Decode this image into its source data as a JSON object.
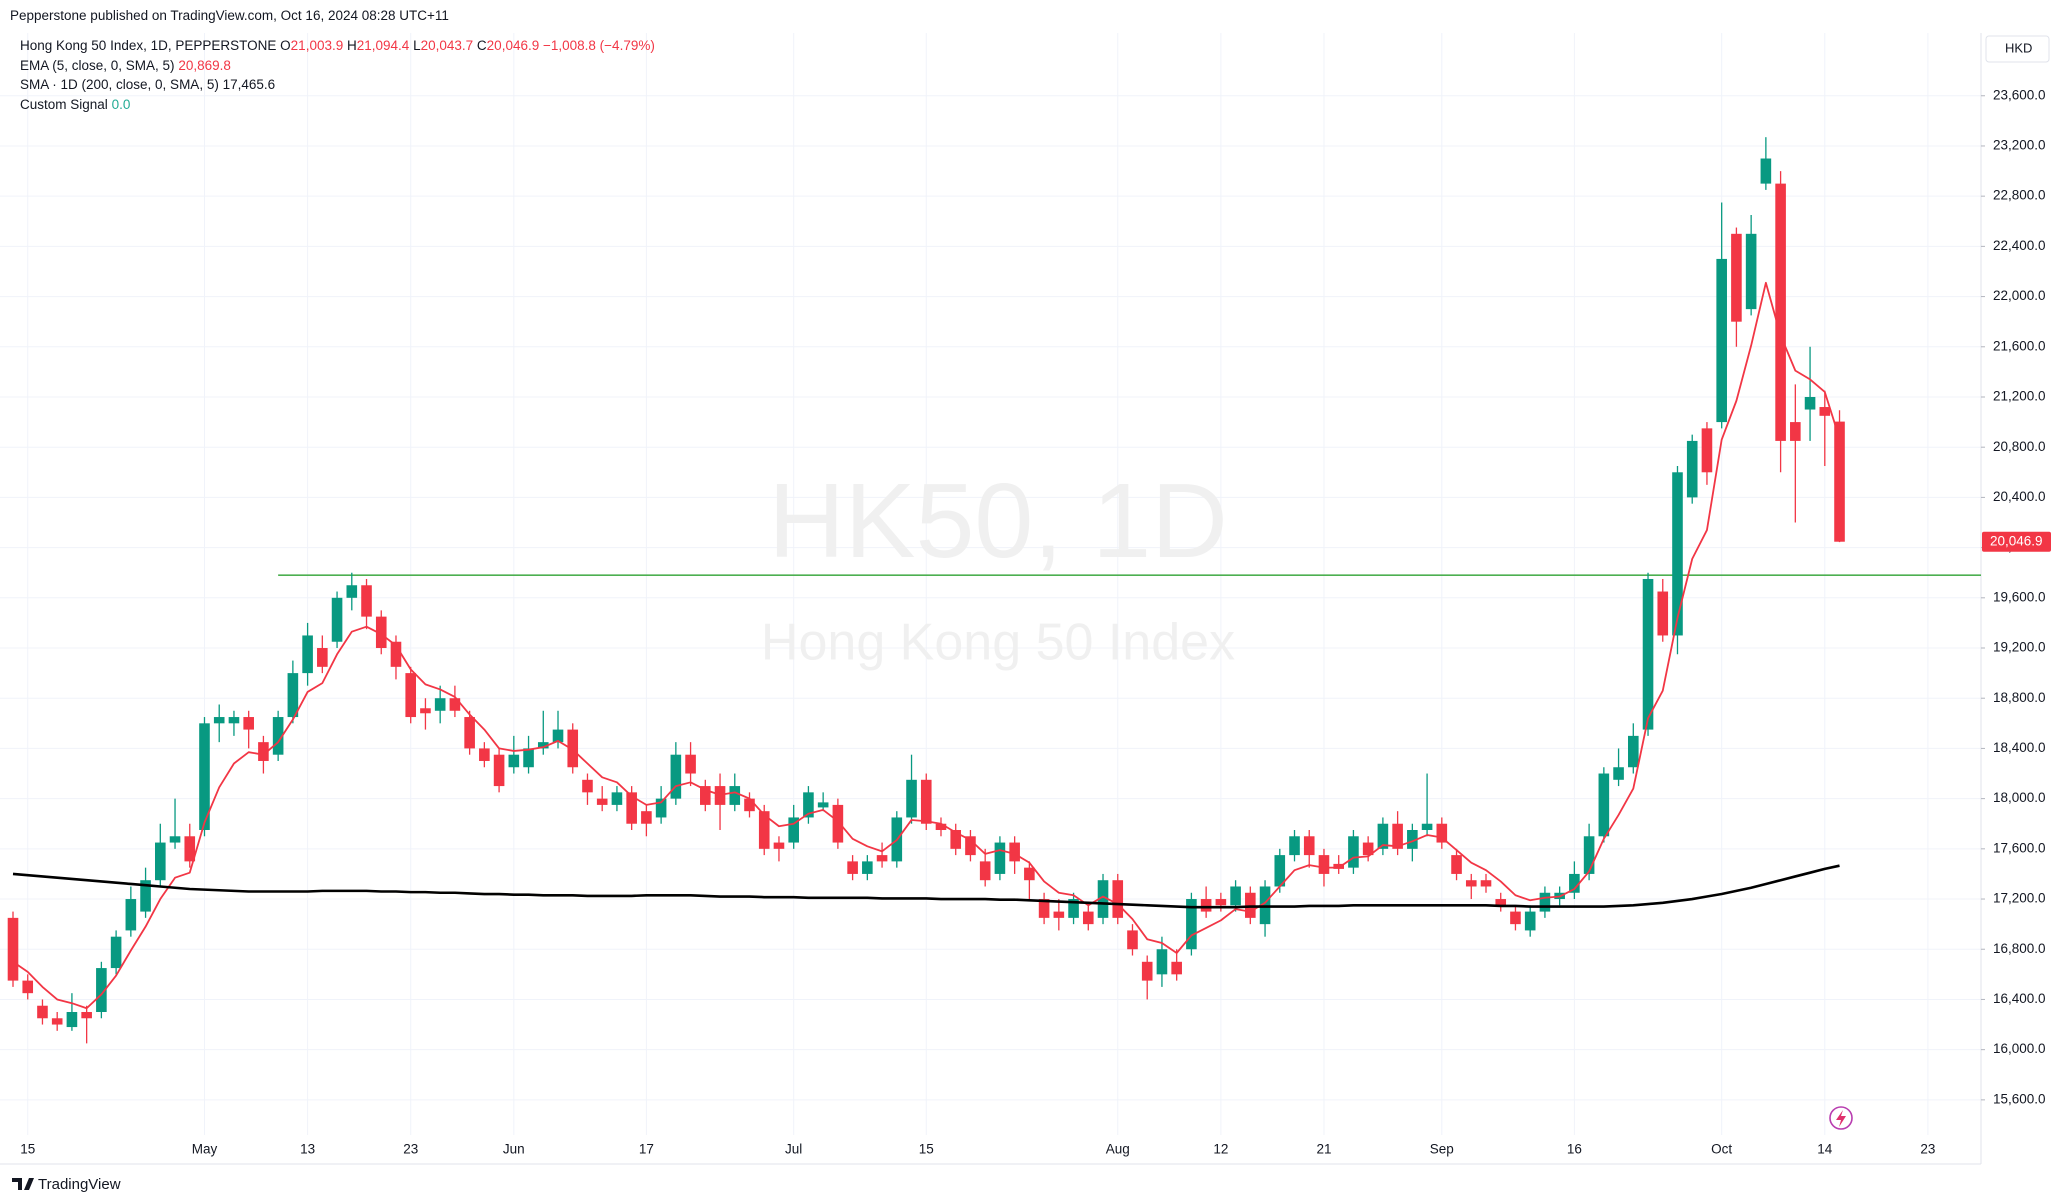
{
  "header": {
    "published": "Pepperstone published on TradingView.com, Oct 16, 2024 08:28 UTC+11",
    "brand": "TradingView"
  },
  "legend": {
    "name": "Hong Kong 50 Index, 1D, PEPPERSTONE",
    "ohlc": [
      {
        "key": "O",
        "value": "21,003.9"
      },
      {
        "key": "H",
        "value": "21,094.4"
      },
      {
        "key": "L",
        "value": "20,043.7"
      },
      {
        "key": "C",
        "value": "20,046.9"
      }
    ],
    "change": "−1,008.8 (−4.79%)",
    "custom_signal": {
      "name": "Custom Signal",
      "value": "0.0"
    }
  },
  "chart_data": {
    "type": "candlestick",
    "watermark": "HK50, 1D",
    "watermark_sub": "Hong Kong 50 Index",
    "currency": "HKD",
    "last_price_label": "20,046.9",
    "up_color": "#089981",
    "down_color": "#f23645",
    "grid": true,
    "categories": [
      null,
      "15",
      null,
      null,
      null,
      null,
      null,
      null,
      null,
      null,
      null,
      null,
      null,
      "May",
      null,
      null,
      null,
      null,
      null,
      null,
      "13",
      null,
      null,
      null,
      null,
      null,
      null,
      "23",
      null,
      null,
      null,
      null,
      null,
      null,
      "Jun",
      null,
      null,
      null,
      null,
      null,
      null,
      null,
      null,
      "17",
      null,
      null,
      null,
      null,
      null,
      null,
      null,
      null,
      null,
      "Jul",
      null,
      null,
      null,
      null,
      null,
      null,
      null,
      null,
      "15",
      null,
      null,
      null,
      null,
      null,
      null,
      null,
      null,
      null,
      null,
      null,
      null,
      "Aug",
      null,
      null,
      null,
      null,
      null,
      null,
      "12",
      null,
      null,
      null,
      null,
      null,
      null,
      "21",
      null,
      null,
      null,
      null,
      null,
      null,
      null,
      "Sep",
      null,
      null,
      null,
      null,
      null,
      null,
      null,
      null,
      "16",
      null,
      null,
      null,
      null,
      null,
      null,
      null,
      null,
      null,
      "Oct",
      null,
      null,
      null,
      null,
      null,
      null,
      "14",
      null,
      null,
      null,
      null,
      null,
      null,
      "23",
      null,
      null,
      null
    ],
    "open": [
      17050,
      16550,
      16350,
      16250,
      16180,
      16300,
      16300,
      16650,
      16950,
      17100,
      17350,
      17650,
      17700,
      17750,
      18600,
      18600,
      18650,
      18450,
      18350,
      18650,
      19000,
      19200,
      19250,
      19600,
      19700,
      19450,
      19250,
      19000,
      18720,
      18700,
      18800,
      18650,
      18400,
      18350,
      18250,
      18250,
      18400,
      18450,
      18550,
      18150,
      18000,
      17950,
      18050,
      17900,
      17850,
      18000,
      18350,
      18100,
      18100,
      17950,
      18000,
      17900,
      17650,
      17650,
      17850,
      17930,
      17950,
      17500,
      17400,
      17550,
      17500,
      17850,
      18150,
      17800,
      17750,
      17700,
      17500,
      17400,
      17650,
      17450,
      17200,
      17100,
      17050,
      17100,
      17050,
      17350,
      16950,
      16700,
      16600,
      16700,
      16800,
      17200,
      17200,
      17150,
      17250,
      17000,
      17300,
      17550,
      17700,
      17550,
      17480,
      17450,
      17650,
      17600,
      17800,
      17600,
      17750,
      17800,
      17550,
      17350,
      17350,
      17200,
      17100,
      16950,
      17100,
      17200,
      17250,
      17400,
      17700,
      18150,
      18250,
      18550,
      19650,
      19300,
      20400,
      20950,
      21000,
      22500,
      21900,
      22900,
      22900,
      21000,
      21100,
      21120,
      21003.9,
      null,
      null,
      null,
      null,
      null,
      null,
      null,
      null,
      null
    ],
    "high": [
      17100,
      16600,
      16400,
      16300,
      16450,
      16350,
      16700,
      16950,
      17300,
      17450,
      17800,
      18000,
      17800,
      18650,
      18750,
      18700,
      18700,
      18500,
      18700,
      19100,
      19400,
      19300,
      19650,
      19800,
      19750,
      19500,
      19300,
      19050,
      18800,
      18900,
      18900,
      18700,
      18450,
      18400,
      18500,
      18500,
      18700,
      18700,
      18600,
      18200,
      18100,
      18100,
      18100,
      17950,
      18100,
      18450,
      18450,
      18150,
      18200,
      18200,
      18050,
      17950,
      17700,
      17950,
      18100,
      18050,
      18000,
      17550,
      17550,
      17650,
      17900,
      18350,
      18200,
      17850,
      17800,
      17750,
      17600,
      17700,
      17700,
      17500,
      17250,
      17200,
      17250,
      17150,
      17400,
      17400,
      17000,
      16750,
      16900,
      16800,
      17250,
      17300,
      17250,
      17350,
      17300,
      17350,
      17600,
      17750,
      17750,
      17600,
      17550,
      17750,
      17700,
      17850,
      17900,
      17800,
      18200,
      17850,
      17600,
      17400,
      17400,
      17250,
      17150,
      17150,
      17300,
      17300,
      17500,
      17800,
      18250,
      18400,
      18600,
      19800,
      19750,
      20650,
      20900,
      21000,
      22750,
      22550,
      22650,
      23270,
      23000,
      21300,
      21600,
      21250,
      21094.4,
      null,
      null,
      null,
      null,
      null,
      null,
      null,
      null,
      null
    ],
    "low": [
      16500,
      16400,
      16200,
      16150,
      16150,
      16050,
      16250,
      16600,
      16900,
      17050,
      17300,
      17600,
      17450,
      17700,
      18450,
      18500,
      18400,
      18200,
      18300,
      18600,
      18900,
      19000,
      19200,
      19500,
      19350,
      19150,
      18950,
      18600,
      18550,
      18600,
      18650,
      18350,
      18250,
      18050,
      18200,
      18200,
      18350,
      18400,
      18200,
      17950,
      17900,
      17900,
      17750,
      17700,
      17800,
      17950,
      18100,
      17900,
      17750,
      17900,
      17850,
      17550,
      17500,
      17600,
      17800,
      17900,
      17600,
      17350,
      17350,
      17450,
      17450,
      17800,
      17750,
      17700,
      17550,
      17500,
      17300,
      17350,
      17400,
      17200,
      17000,
      16950,
      17000,
      16950,
      17000,
      17000,
      16750,
      16400,
      16500,
      16550,
      16750,
      17050,
      17100,
      17100,
      17000,
      16900,
      17250,
      17500,
      17450,
      17300,
      17400,
      17400,
      17500,
      17550,
      17550,
      17500,
      17700,
      17600,
      17350,
      17200,
      17250,
      17100,
      16950,
      16900,
      17050,
      17150,
      17200,
      17350,
      17650,
      18100,
      18200,
      18500,
      19250,
      19150,
      20350,
      20500,
      20950,
      21600,
      21850,
      22850,
      20600,
      20200,
      20850,
      20650,
      20043.7,
      null,
      null,
      null,
      null,
      null,
      null,
      null,
      null,
      null
    ],
    "close": [
      16550,
      16450,
      16250,
      16200,
      16300,
      16250,
      16650,
      16900,
      17200,
      17350,
      17650,
      17700,
      17500,
      18600,
      18650,
      18650,
      18550,
      18300,
      18650,
      19000,
      19300,
      19050,
      19600,
      19700,
      19450,
      19200,
      19050,
      18650,
      18680,
      18800,
      18700,
      18400,
      18300,
      18100,
      18350,
      18400,
      18450,
      18550,
      18250,
      18050,
      17950,
      18050,
      17800,
      17800,
      18000,
      18350,
      18200,
      17950,
      17950,
      18100,
      17900,
      17600,
      17600,
      17850,
      18050,
      17970,
      17650,
      17400,
      17500,
      17500,
      17850,
      18150,
      17800,
      17750,
      17600,
      17550,
      17350,
      17650,
      17500,
      17350,
      17050,
      17050,
      17200,
      17000,
      17350,
      17050,
      16800,
      16550,
      16800,
      16600,
      17200,
      17100,
      17150,
      17300,
      17050,
      17300,
      17550,
      17700,
      17550,
      17400,
      17440,
      17700,
      17550,
      17800,
      17600,
      17750,
      17800,
      17650,
      17400,
      17300,
      17300,
      17150,
      17000,
      17100,
      17250,
      17250,
      17400,
      17700,
      18200,
      18250,
      18500,
      19750,
      19300,
      20600,
      20850,
      20600,
      22300,
      21800,
      22500,
      23100,
      20850,
      20850,
      21200,
      21050,
      20046.9,
      null,
      null,
      null,
      null,
      null,
      null,
      null,
      null,
      null
    ],
    "series": [
      {
        "name": "EMA (5, close, 0, SMA, 5)",
        "value_label": "20,869.8",
        "color": "#f23645",
        "values": [
          16700,
          16620,
          16500,
          16400,
          16370,
          16330,
          16440,
          16590,
          16790,
          16980,
          17200,
          17370,
          17410,
          17810,
          18090,
          18280,
          18370,
          18350,
          18450,
          18630,
          18850,
          18920,
          19150,
          19330,
          19370,
          19310,
          19220,
          19030,
          18910,
          18870,
          18810,
          18670,
          18550,
          18400,
          18380,
          18390,
          18410,
          18460,
          18390,
          18280,
          18170,
          18130,
          18020,
          17950,
          17970,
          18100,
          18130,
          18070,
          18030,
          18050,
          18000,
          17870,
          17780,
          17800,
          17880,
          17910,
          17820,
          17680,
          17620,
          17580,
          17670,
          17830,
          17820,
          17800,
          17730,
          17670,
          17560,
          17590,
          17560,
          17490,
          17340,
          17250,
          17230,
          17150,
          17220,
          17160,
          17040,
          16880,
          16850,
          16770,
          16910,
          16970,
          17030,
          17120,
          17100,
          17170,
          17300,
          17430,
          17470,
          17450,
          17450,
          17530,
          17540,
          17630,
          17620,
          17660,
          17710,
          17690,
          17590,
          17490,
          17430,
          17340,
          17230,
          17190,
          17210,
          17220,
          17280,
          17420,
          17680,
          17870,
          18080,
          18640,
          18860,
          19440,
          19910,
          20140,
          20860,
          21170,
          21610,
          22110,
          21690,
          21410,
          21340,
          21240,
          20869.8,
          null,
          null,
          null,
          null,
          null,
          null,
          null,
          null,
          null
        ]
      },
      {
        "name": "SMA · 1D (200, close, 0, SMA, 5)",
        "value_label": "17,465.6",
        "color": "#000000",
        "values": [
          17400,
          17390,
          17380,
          17370,
          17360,
          17350,
          17340,
          17330,
          17320,
          17310,
          17300,
          17290,
          17280,
          17275,
          17270,
          17265,
          17260,
          17260,
          17260,
          17260,
          17260,
          17265,
          17265,
          17265,
          17265,
          17260,
          17260,
          17255,
          17255,
          17250,
          17250,
          17245,
          17240,
          17240,
          17235,
          17235,
          17230,
          17230,
          17230,
          17225,
          17225,
          17225,
          17225,
          17230,
          17230,
          17230,
          17230,
          17225,
          17220,
          17220,
          17220,
          17215,
          17215,
          17215,
          17210,
          17210,
          17210,
          17210,
          17210,
          17205,
          17205,
          17205,
          17205,
          17200,
          17200,
          17200,
          17200,
          17195,
          17195,
          17190,
          17185,
          17180,
          17175,
          17170,
          17165,
          17160,
          17155,
          17150,
          17145,
          17140,
          17135,
          17135,
          17135,
          17135,
          17140,
          17140,
          17140,
          17140,
          17145,
          17145,
          17145,
          17150,
          17150,
          17150,
          17150,
          17150,
          17150,
          17150,
          17150,
          17150,
          17150,
          17145,
          17145,
          17140,
          17140,
          17140,
          17140,
          17140,
          17140,
          17145,
          17150,
          17160,
          17170,
          17185,
          17200,
          17220,
          17240,
          17265,
          17290,
          17320,
          17350,
          17380,
          17410,
          17440,
          17465.6,
          null,
          null,
          null,
          null,
          null,
          null,
          null,
          null,
          null
        ]
      }
    ],
    "hline": {
      "value": 19780,
      "start": 18,
      "color": "#4caf50"
    },
    "ylim": [
      15320,
      24100
    ],
    "yticks": [
      {
        "value": 15600,
        "label": "15,600.0"
      },
      {
        "value": 16000,
        "label": "16,000.0"
      },
      {
        "value": 16400,
        "label": "16,400.0"
      },
      {
        "value": 16800,
        "label": "16,800.0"
      },
      {
        "value": 17200,
        "label": "17,200.0"
      },
      {
        "value": 17600,
        "label": "17,600.0"
      },
      {
        "value": 18000,
        "label": "18,000.0"
      },
      {
        "value": 18400,
        "label": "18,400.0"
      },
      {
        "value": 18800,
        "label": "18,800.0"
      },
      {
        "value": 19200,
        "label": "19,200.0"
      },
      {
        "value": 19600,
        "label": "19,600.0"
      },
      {
        "value": 20000,
        "label": "20,000.0"
      },
      {
        "value": 20400,
        "label": "20,400.0"
      },
      {
        "value": 20800,
        "label": "20,800.0"
      },
      {
        "value": 21200,
        "label": "21,200.0"
      },
      {
        "value": 21600,
        "label": "21,600.0"
      },
      {
        "value": 22000,
        "label": "22,000.0"
      },
      {
        "value": 22400,
        "label": "22,400.0"
      },
      {
        "value": 22800,
        "label": "22,800.0"
      },
      {
        "value": 23200,
        "label": "23,200.0"
      },
      {
        "value": 23600,
        "label": "23,600.0"
      }
    ]
  }
}
